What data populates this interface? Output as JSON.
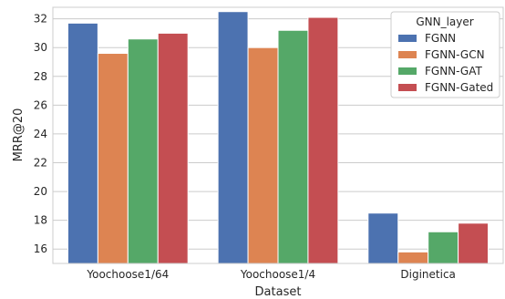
{
  "chart_data": {
    "type": "bar",
    "xlabel": "Dataset",
    "ylabel": "MRR@20",
    "categories": [
      "Yoochoose1/64",
      "Yoochoose1/4",
      "Diginetica"
    ],
    "series": [
      {
        "name": "FGNN",
        "color": "#4c72b0",
        "values": [
          31.7,
          32.5,
          18.5
        ]
      },
      {
        "name": "FGNN-GCN",
        "color": "#dd8452",
        "values": [
          29.6,
          30.0,
          15.8
        ]
      },
      {
        "name": "FGNN-GAT",
        "color": "#55a868",
        "values": [
          30.6,
          31.2,
          17.2
        ]
      },
      {
        "name": "FGNN-Gated",
        "color": "#c44e52",
        "values": [
          31.0,
          32.1,
          17.8
        ]
      }
    ],
    "ylim": [
      15,
      32.8
    ],
    "yticks": [
      16,
      18,
      20,
      22,
      24,
      26,
      28,
      30,
      32
    ],
    "grid": true,
    "legend": {
      "title": "GNN_layer",
      "placement": "top-right"
    }
  }
}
